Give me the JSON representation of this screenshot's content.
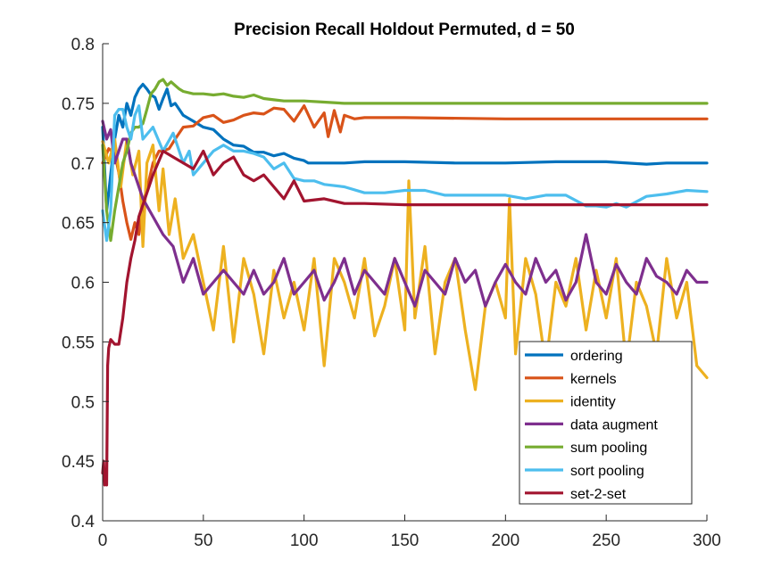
{
  "chart_data": {
    "type": "line",
    "title": "Precision Recall Holdout Permuted, d = 50",
    "xlabel": "",
    "ylabel": "",
    "xlim": [
      0,
      300
    ],
    "ylim": [
      0.4,
      0.8
    ],
    "xticks": [
      0,
      50,
      100,
      150,
      200,
      250,
      300
    ],
    "xtick_labels": [
      "0",
      "50",
      "100",
      "150",
      "200",
      "250",
      "300"
    ],
    "yticks": [
      0.4,
      0.45,
      0.5,
      0.55,
      0.6,
      0.65,
      0.7,
      0.75,
      0.8
    ],
    "ytick_labels": [
      "0.4",
      "0.45",
      "0.5",
      "0.55",
      "0.6",
      "0.65",
      "0.7",
      "0.75",
      "0.8"
    ],
    "grid": false,
    "legend_position": "bottom-right",
    "series": [
      {
        "name": "ordering",
        "color": "#0072BD",
        "x": [
          0,
          2,
          4,
          6,
          8,
          10,
          12,
          14,
          16,
          18,
          20,
          22,
          24,
          26,
          28,
          30,
          32,
          34,
          36,
          38,
          40,
          45,
          50,
          55,
          60,
          65,
          70,
          75,
          80,
          85,
          90,
          95,
          100,
          102,
          110,
          120,
          130,
          150,
          175,
          200,
          225,
          250,
          270,
          280,
          290,
          300
        ],
        "y": [
          0.73,
          0.66,
          0.69,
          0.72,
          0.74,
          0.73,
          0.75,
          0.74,
          0.755,
          0.762,
          0.766,
          0.762,
          0.757,
          0.755,
          0.745,
          0.754,
          0.762,
          0.748,
          0.75,
          0.745,
          0.74,
          0.735,
          0.73,
          0.728,
          0.72,
          0.715,
          0.714,
          0.709,
          0.709,
          0.706,
          0.708,
          0.704,
          0.702,
          0.7,
          0.7,
          0.7,
          0.701,
          0.701,
          0.7,
          0.7,
          0.701,
          0.701,
          0.699,
          0.7,
          0.7,
          0.7
        ]
      },
      {
        "name": "kernels",
        "color": "#D95319",
        "x": [
          0,
          3,
          6,
          8,
          10,
          12,
          14,
          16,
          18,
          20,
          22,
          25,
          28,
          30,
          33,
          36,
          40,
          45,
          50,
          55,
          60,
          65,
          70,
          75,
          80,
          85,
          90,
          95,
          100,
          105,
          110,
          112,
          115,
          118,
          120,
          125,
          130,
          150,
          200,
          250,
          300
        ],
        "y": [
          0.7,
          0.712,
          0.708,
          0.692,
          0.668,
          0.65,
          0.636,
          0.65,
          0.64,
          0.666,
          0.678,
          0.7,
          0.71,
          0.71,
          0.712,
          0.72,
          0.73,
          0.731,
          0.738,
          0.74,
          0.734,
          0.736,
          0.74,
          0.742,
          0.741,
          0.746,
          0.745,
          0.735,
          0.748,
          0.73,
          0.742,
          0.722,
          0.744,
          0.726,
          0.74,
          0.737,
          0.738,
          0.738,
          0.737,
          0.737,
          0.737
        ]
      },
      {
        "name": "identity",
        "color": "#EDB120",
        "x": [
          0,
          3,
          6,
          9,
          12,
          15,
          18,
          20,
          22,
          25,
          28,
          30,
          33,
          36,
          40,
          45,
          50,
          55,
          60,
          65,
          70,
          75,
          80,
          85,
          90,
          95,
          100,
          105,
          110,
          115,
          120,
          125,
          130,
          135,
          140,
          145,
          150,
          152,
          155,
          160,
          165,
          170,
          175,
          180,
          185,
          190,
          195,
          200,
          202,
          205,
          210,
          215,
          220,
          225,
          230,
          235,
          240,
          245,
          250,
          255,
          260,
          265,
          270,
          275,
          280,
          285,
          290,
          295,
          300
        ],
        "y": [
          0.718,
          0.7,
          0.72,
          0.68,
          0.72,
          0.69,
          0.71,
          0.63,
          0.7,
          0.715,
          0.66,
          0.695,
          0.64,
          0.67,
          0.62,
          0.64,
          0.6,
          0.56,
          0.63,
          0.55,
          0.62,
          0.59,
          0.54,
          0.61,
          0.57,
          0.6,
          0.56,
          0.62,
          0.53,
          0.62,
          0.6,
          0.57,
          0.62,
          0.555,
          0.58,
          0.62,
          0.56,
          0.685,
          0.57,
          0.63,
          0.54,
          0.6,
          0.62,
          0.56,
          0.51,
          0.58,
          0.6,
          0.57,
          0.67,
          0.54,
          0.62,
          0.59,
          0.53,
          0.6,
          0.58,
          0.62,
          0.56,
          0.61,
          0.57,
          0.62,
          0.53,
          0.6,
          0.58,
          0.54,
          0.62,
          0.57,
          0.6,
          0.53,
          0.52
        ]
      },
      {
        "name": "data augment",
        "color": "#7E2F8E",
        "x": [
          0,
          2,
          4,
          6,
          8,
          10,
          12,
          14,
          16,
          18,
          20,
          25,
          30,
          35,
          40,
          45,
          50,
          55,
          60,
          65,
          70,
          75,
          80,
          85,
          90,
          95,
          100,
          105,
          110,
          115,
          120,
          125,
          130,
          135,
          140,
          145,
          150,
          155,
          160,
          165,
          170,
          175,
          180,
          185,
          190,
          195,
          200,
          205,
          210,
          215,
          220,
          225,
          230,
          235,
          240,
          245,
          250,
          255,
          260,
          265,
          270,
          275,
          280,
          285,
          290,
          295,
          300
        ],
        "y": [
          0.735,
          0.72,
          0.728,
          0.7,
          0.71,
          0.72,
          0.72,
          0.7,
          0.69,
          0.68,
          0.67,
          0.655,
          0.64,
          0.63,
          0.6,
          0.62,
          0.59,
          0.6,
          0.61,
          0.6,
          0.59,
          0.61,
          0.59,
          0.6,
          0.62,
          0.59,
          0.6,
          0.61,
          0.585,
          0.6,
          0.62,
          0.59,
          0.61,
          0.6,
          0.59,
          0.62,
          0.6,
          0.58,
          0.61,
          0.6,
          0.59,
          0.62,
          0.6,
          0.61,
          0.58,
          0.6,
          0.615,
          0.6,
          0.59,
          0.62,
          0.6,
          0.61,
          0.585,
          0.6,
          0.64,
          0.6,
          0.59,
          0.615,
          0.6,
          0.59,
          0.62,
          0.605,
          0.6,
          0.59,
          0.61,
          0.6,
          0.6
        ]
      },
      {
        "name": "sum pooling",
        "color": "#77AC30",
        "x": [
          0,
          2,
          4,
          6,
          8,
          10,
          12,
          14,
          16,
          18,
          20,
          22,
          24,
          26,
          28,
          30,
          32,
          34,
          36,
          38,
          40,
          45,
          50,
          55,
          60,
          65,
          70,
          75,
          80,
          85,
          90,
          100,
          110,
          120,
          130,
          150,
          200,
          250,
          300
        ],
        "y": [
          0.715,
          0.66,
          0.635,
          0.66,
          0.68,
          0.7,
          0.71,
          0.725,
          0.73,
          0.73,
          0.733,
          0.745,
          0.758,
          0.762,
          0.768,
          0.77,
          0.765,
          0.768,
          0.765,
          0.762,
          0.76,
          0.758,
          0.758,
          0.757,
          0.758,
          0.756,
          0.755,
          0.757,
          0.754,
          0.753,
          0.752,
          0.752,
          0.751,
          0.75,
          0.75,
          0.75,
          0.75,
          0.75,
          0.75
        ]
      },
      {
        "name": "sort pooling",
        "color": "#4DBEEE",
        "x": [
          0,
          2,
          4,
          6,
          8,
          10,
          12,
          14,
          16,
          18,
          20,
          25,
          30,
          35,
          40,
          43,
          45,
          50,
          55,
          60,
          65,
          70,
          75,
          80,
          85,
          90,
          95,
          100,
          105,
          110,
          120,
          130,
          140,
          150,
          160,
          170,
          180,
          190,
          200,
          210,
          220,
          230,
          240,
          245,
          250,
          255,
          260,
          270,
          280,
          290,
          300
        ],
        "y": [
          0.66,
          0.635,
          0.66,
          0.74,
          0.745,
          0.745,
          0.73,
          0.72,
          0.74,
          0.748,
          0.72,
          0.73,
          0.71,
          0.725,
          0.7,
          0.71,
          0.69,
          0.7,
          0.71,
          0.715,
          0.71,
          0.71,
          0.708,
          0.705,
          0.695,
          0.7,
          0.687,
          0.685,
          0.685,
          0.682,
          0.68,
          0.675,
          0.675,
          0.677,
          0.677,
          0.673,
          0.673,
          0.673,
          0.673,
          0.67,
          0.673,
          0.673,
          0.664,
          0.664,
          0.663,
          0.666,
          0.663,
          0.672,
          0.674,
          0.677,
          0.676
        ]
      },
      {
        "name": "set-2-set",
        "color": "#A2142F",
        "x": [
          0,
          0.5,
          1,
          1.5,
          2,
          2.5,
          3,
          4,
          6,
          8,
          10,
          12,
          14,
          16,
          18,
          20,
          25,
          30,
          35,
          40,
          45,
          50,
          55,
          60,
          65,
          70,
          75,
          80,
          85,
          90,
          95,
          100,
          110,
          120,
          130,
          150,
          200,
          250,
          300
        ],
        "y": [
          0.44,
          0.45,
          0.43,
          0.435,
          0.43,
          0.53,
          0.545,
          0.552,
          0.548,
          0.548,
          0.57,
          0.6,
          0.62,
          0.635,
          0.655,
          0.665,
          0.69,
          0.71,
          0.705,
          0.7,
          0.695,
          0.71,
          0.69,
          0.7,
          0.705,
          0.69,
          0.685,
          0.69,
          0.68,
          0.67,
          0.685,
          0.668,
          0.67,
          0.666,
          0.666,
          0.665,
          0.665,
          0.665,
          0.665
        ]
      }
    ]
  }
}
